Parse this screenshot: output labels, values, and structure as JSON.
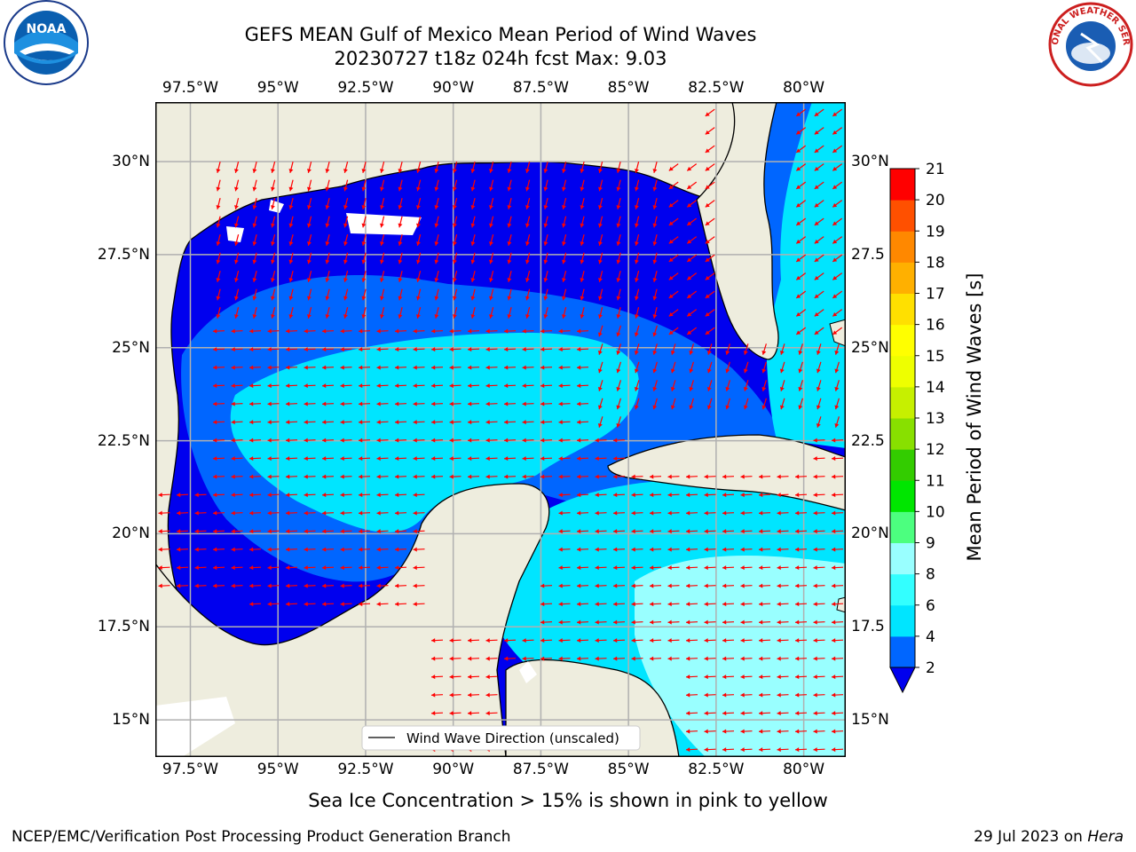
{
  "header": {
    "title_line1": "GEFS MEAN Gulf of Mexico Mean Period of Wind Waves",
    "title_line2": "20230727 t18z 024h fcst   Max: 9.03"
  },
  "footer": {
    "note": "Sea Ice Concentration > 15% is shown in pink to yellow",
    "credit": "NCEP/EMC/Verification Post Processing Product Generation Branch",
    "date_prefix": "29 Jul 2023 on ",
    "machine": "Hera"
  },
  "logos": {
    "left": "NOAA",
    "right": "NATIONAL WEATHER SERVICE"
  },
  "chart_data": {
    "type": "heatmap",
    "title": "GEFS MEAN Gulf of Mexico Mean Period of Wind Waves",
    "subtitle": "20230727 t18z 024h fcst   Max: 9.03",
    "max_value": 9.03,
    "lon_range": [
      -98.5,
      -78.8
    ],
    "lat_range": [
      14.0,
      31.6
    ],
    "lon_ticks": [
      "97.5°W",
      "95°W",
      "92.5°W",
      "90°W",
      "87.5°W",
      "85°W",
      "82.5°W",
      "80°W"
    ],
    "lon_tick_values": [
      -97.5,
      -95,
      -92.5,
      -90,
      -87.5,
      -85,
      -82.5,
      -80
    ],
    "lat_ticks": [
      "30°N",
      "27.5°N",
      "25°N",
      "22.5°N",
      "20°N",
      "17.5°N",
      "15°N"
    ],
    "lat_tick_values": [
      30,
      27.5,
      25,
      22.5,
      20,
      17.5,
      15
    ],
    "lat_ticks_right": [
      "30°N",
      "27.5",
      "25°N",
      "22.5",
      "20°N",
      "17.5",
      "15°N"
    ],
    "grid": true,
    "legend": {
      "label": "Wind Wave Direction (unscaled)",
      "placement": "bottom-right"
    },
    "colorbar": {
      "label": "Mean Period of Wind Waves [s]",
      "extend": "min",
      "levels": [
        2,
        4,
        6,
        8,
        9,
        10,
        11,
        12,
        13,
        14,
        15,
        16,
        17,
        18,
        19,
        20,
        21
      ],
      "colors": [
        "#0066ff",
        "#00e5ff",
        "#33ffff",
        "#99ffff",
        "#4cff7f",
        "#00e600",
        "#33cc00",
        "#88e000",
        "#c6f000",
        "#eeff00",
        "#ffff00",
        "#ffe000",
        "#ffb000",
        "#ff8800",
        "#ff5000",
        "#ff0000"
      ],
      "under_color": "#0000ee"
    },
    "colors": {
      "land": "#eeedde",
      "no_data": "#ffffff",
      "arrow": "#ff0000",
      "coastline": "#000000",
      "gridline": "#b0b0b0"
    }
  }
}
